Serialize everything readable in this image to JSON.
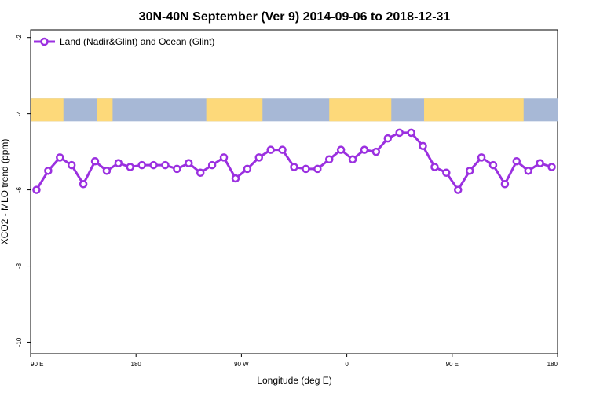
{
  "chart_data": {
    "type": "line",
    "title": "30N-40N September (Ver 9)   2014-09-06 to 2018-12-31",
    "xlabel": "Longitude (deg E)",
    "ylabel": "XCO2 - MLO trend (ppm)",
    "xlim": [
      90,
      540
    ],
    "ylim": [
      -10.3,
      -1.8
    ],
    "xticks": [
      90,
      180,
      270,
      360,
      450,
      540
    ],
    "xtick_labels": [
      "90 E",
      "180",
      "90 W",
      "0",
      "90 E",
      "180"
    ],
    "yticks": [
      -2,
      -4,
      -6,
      -8,
      -10
    ],
    "ytick_labels": [
      "-2",
      "-4",
      "-6",
      "-8",
      "-10"
    ],
    "grid": false,
    "legend_position": "top-left",
    "series": [
      {
        "name": "Land (Nadir&Glint) and Ocean (Glint)",
        "color": "#9b30e0",
        "x": [
          95,
          105,
          115,
          125,
          135,
          145,
          155,
          165,
          175,
          185,
          195,
          205,
          215,
          225,
          235,
          245,
          255,
          265,
          275,
          285,
          295,
          305,
          315,
          325,
          335,
          345,
          355,
          365,
          375,
          385,
          395,
          405,
          415,
          425,
          435,
          445,
          455,
          465,
          475,
          485,
          495,
          505,
          515,
          525,
          535
        ],
        "values": [
          -6.0,
          -5.5,
          -5.15,
          -5.35,
          -5.85,
          -5.25,
          -5.5,
          -5.3,
          -5.4,
          -5.35,
          -5.35,
          -5.35,
          -5.45,
          -5.3,
          -5.55,
          -5.35,
          -5.15,
          -5.7,
          -5.45,
          -5.15,
          -4.95,
          -4.95,
          -5.4,
          -5.45,
          -5.45,
          -5.2,
          -4.95,
          -5.2,
          -4.95,
          -5.0,
          -4.65,
          -4.5,
          -4.5,
          -4.85,
          -5.4,
          -5.55,
          -6.0,
          -5.5,
          -5.15,
          -5.35,
          -5.85,
          -5.25,
          -5.5,
          -5.3,
          -5.4
        ]
      }
    ],
    "map_strip": {
      "y_range": [
        -4.2,
        -3.6
      ],
      "land_color": "#fdd97a",
      "ocean_color": "#a7b8d6",
      "land_segments": [
        [
          90,
          118
        ],
        [
          147,
          160
        ],
        [
          240,
          288
        ],
        [
          345,
          398
        ],
        [
          426,
          511
        ]
      ]
    }
  }
}
